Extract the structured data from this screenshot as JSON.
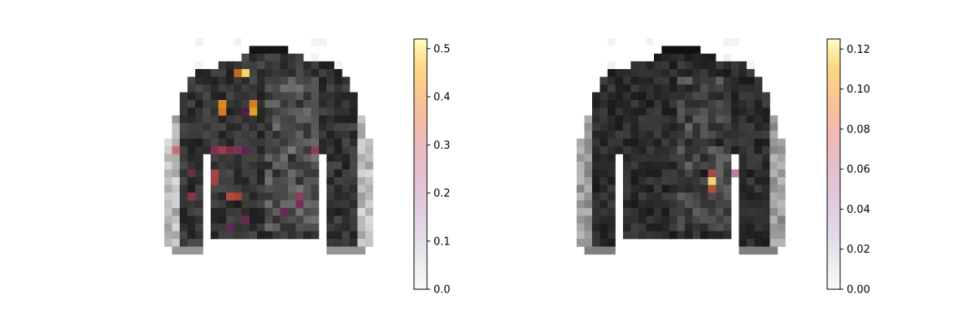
{
  "chart_data": [
    {
      "type": "heatmap",
      "title": "",
      "xlabel": "",
      "ylabel": "",
      "colorbar": {
        "colormap": "inferno-like (transparent at 0)",
        "range": [
          0,
          0.52
        ],
        "ticks": [
          {
            "value": 0.0,
            "label": "0.0"
          },
          {
            "value": 0.1,
            "label": "0.1"
          },
          {
            "value": 0.2,
            "label": "0.2"
          },
          {
            "value": 0.3,
            "label": "0.3"
          },
          {
            "value": 0.4,
            "label": "0.4"
          },
          {
            "value": 0.5,
            "label": "0.5"
          }
        ]
      },
      "grid": false,
      "background_image": "grayscale 28x28 jacket",
      "hotspots": [
        {
          "col": 10,
          "row": 4,
          "value": 0.5
        },
        {
          "col": 9,
          "row": 4,
          "value": 0.38
        },
        {
          "col": 7,
          "row": 8,
          "value": 0.42
        },
        {
          "col": 7,
          "row": 9,
          "value": 0.4
        },
        {
          "col": 11,
          "row": 8,
          "value": 0.4
        },
        {
          "col": 11,
          "row": 9,
          "value": 0.45
        },
        {
          "col": 10,
          "row": 9,
          "value": 0.18
        },
        {
          "col": 1,
          "row": 14,
          "value": 0.3
        },
        {
          "col": 6,
          "row": 14,
          "value": 0.25
        },
        {
          "col": 7,
          "row": 14,
          "value": 0.28
        },
        {
          "col": 8,
          "row": 14,
          "value": 0.25
        },
        {
          "col": 9,
          "row": 14,
          "value": 0.22
        },
        {
          "col": 10,
          "row": 14,
          "value": 0.2
        },
        {
          "col": 19,
          "row": 14,
          "value": 0.25
        },
        {
          "col": 6,
          "row": 17,
          "value": 0.3
        },
        {
          "col": 6,
          "row": 18,
          "value": 0.3
        },
        {
          "col": 3,
          "row": 17,
          "value": 0.22
        },
        {
          "col": 3,
          "row": 20,
          "value": 0.28
        },
        {
          "col": 8,
          "row": 20,
          "value": 0.32
        },
        {
          "col": 9,
          "row": 20,
          "value": 0.32
        },
        {
          "col": 17,
          "row": 20,
          "value": 0.25
        },
        {
          "col": 17,
          "row": 21,
          "value": 0.22
        },
        {
          "col": 15,
          "row": 22,
          "value": 0.2
        },
        {
          "col": 10,
          "row": 23,
          "value": 0.22
        },
        {
          "col": 8,
          "row": 24,
          "value": 0.18
        }
      ]
    },
    {
      "type": "heatmap",
      "title": "",
      "xlabel": "",
      "ylabel": "",
      "colorbar": {
        "colormap": "inferno-like (transparent at 0)",
        "range": [
          0,
          0.125
        ],
        "ticks": [
          {
            "value": 0.0,
            "label": "0.00"
          },
          {
            "value": 0.02,
            "label": "0.02"
          },
          {
            "value": 0.04,
            "label": "0.04"
          },
          {
            "value": 0.06,
            "label": "0.06"
          },
          {
            "value": 0.08,
            "label": "0.08"
          },
          {
            "value": 0.1,
            "label": "0.10"
          },
          {
            "value": 0.12,
            "label": "0.12"
          }
        ]
      },
      "grid": false,
      "background_image": "grayscale 28x28 jacket",
      "hotspots": [
        {
          "col": 17,
          "row": 17,
          "value": 0.07
        },
        {
          "col": 17,
          "row": 18,
          "value": 0.12
        },
        {
          "col": 17,
          "row": 19,
          "value": 0.08
        },
        {
          "col": 20,
          "row": 17,
          "value": 0.05
        }
      ]
    }
  ]
}
